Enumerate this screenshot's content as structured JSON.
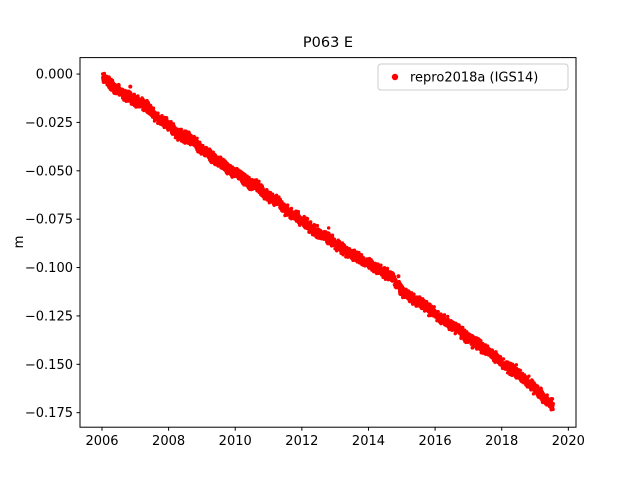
{
  "chart_data": {
    "type": "scatter",
    "title": "P063 E",
    "xlabel": "",
    "ylabel": "m",
    "xlim": [
      2005.34,
      2020.23
    ],
    "ylim": [
      -0.1825,
      0.0085
    ],
    "grid": false,
    "legend_position": "upper right",
    "xticks": [
      2006,
      2008,
      2010,
      2012,
      2014,
      2016,
      2018,
      2020
    ],
    "xtick_labels": [
      "2006",
      "2008",
      "2010",
      "2012",
      "2014",
      "2016",
      "2018",
      "2020"
    ],
    "yticks": [
      0.0,
      -0.025,
      -0.05,
      -0.075,
      -0.1,
      -0.125,
      -0.15,
      -0.175
    ],
    "ytick_labels": [
      "0.000",
      "−0.025",
      "−0.050",
      "−0.075",
      "−0.100",
      "−0.125",
      "−0.150",
      "−0.175"
    ],
    "legend": {
      "label": "repro2018a (IGS14)",
      "marker": "dot",
      "marker_color": "#ff0000"
    },
    "series": [
      {
        "name": "repro2018a (IGS14)",
        "color": "#ff0000",
        "marker_radius_px": 1.7,
        "points_per_year": 260,
        "noise_amplitude_m": 0.0035,
        "trend_anchors": [
          [
            2006.02,
            -0.001
          ],
          [
            2006.5,
            -0.009
          ],
          [
            2007.0,
            -0.014
          ],
          [
            2007.3,
            -0.016
          ],
          [
            2007.6,
            -0.022
          ],
          [
            2008.0,
            -0.026
          ],
          [
            2008.3,
            -0.0315
          ],
          [
            2008.7,
            -0.034
          ],
          [
            2009.0,
            -0.039
          ],
          [
            2009.5,
            -0.0455
          ],
          [
            2010.0,
            -0.051
          ],
          [
            2010.4,
            -0.056
          ],
          [
            2010.7,
            -0.0585
          ],
          [
            2011.0,
            -0.0635
          ],
          [
            2011.3,
            -0.066
          ],
          [
            2011.5,
            -0.07
          ],
          [
            2012.0,
            -0.0755
          ],
          [
            2012.3,
            -0.08
          ],
          [
            2012.7,
            -0.0835
          ],
          [
            2013.0,
            -0.0875
          ],
          [
            2013.4,
            -0.0925
          ],
          [
            2013.8,
            -0.096
          ],
          [
            2014.0,
            -0.098
          ],
          [
            2014.3,
            -0.1005
          ],
          [
            2014.7,
            -0.105
          ],
          [
            2015.0,
            -0.1125
          ],
          [
            2015.3,
            -0.1155
          ],
          [
            2015.7,
            -0.12
          ],
          [
            2016.0,
            -0.124
          ],
          [
            2016.4,
            -0.129
          ],
          [
            2016.8,
            -0.1335
          ],
          [
            2017.0,
            -0.137
          ],
          [
            2017.4,
            -0.141
          ],
          [
            2017.8,
            -0.146
          ],
          [
            2018.0,
            -0.149
          ],
          [
            2018.4,
            -0.154
          ],
          [
            2018.8,
            -0.159
          ],
          [
            2019.0,
            -0.1625
          ],
          [
            2019.3,
            -0.168
          ],
          [
            2019.55,
            -0.1715
          ]
        ],
        "outliers": [
          [
            2006.85,
            -0.0065
          ],
          [
            2014.9,
            -0.1045
          ]
        ]
      }
    ]
  }
}
